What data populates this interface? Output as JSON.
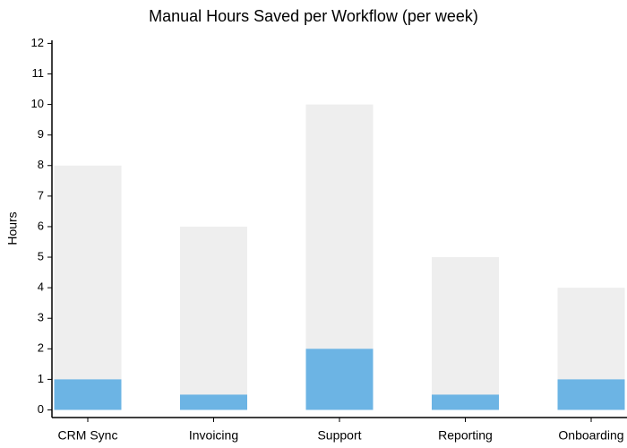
{
  "chart_data": {
    "type": "bar",
    "title": "Manual Hours Saved per Workflow (per week)",
    "y_label": "Hours",
    "categories": [
      "CRM Sync",
      "Invoicing",
      "Support",
      "Reporting",
      "Onboarding"
    ],
    "series": [
      {
        "color": "#eeeeee",
        "values": [
          8,
          6,
          10,
          5,
          4
        ]
      },
      {
        "color": "#6cb4e4",
        "values": [
          1,
          0.5,
          2,
          0.5,
          1
        ]
      }
    ],
    "ylim": [
      -0.25,
      12.1
    ],
    "yticks": [
      0,
      1,
      2,
      3,
      4,
      5,
      6,
      7,
      8,
      9,
      10,
      11,
      12
    ],
    "grid": false
  }
}
